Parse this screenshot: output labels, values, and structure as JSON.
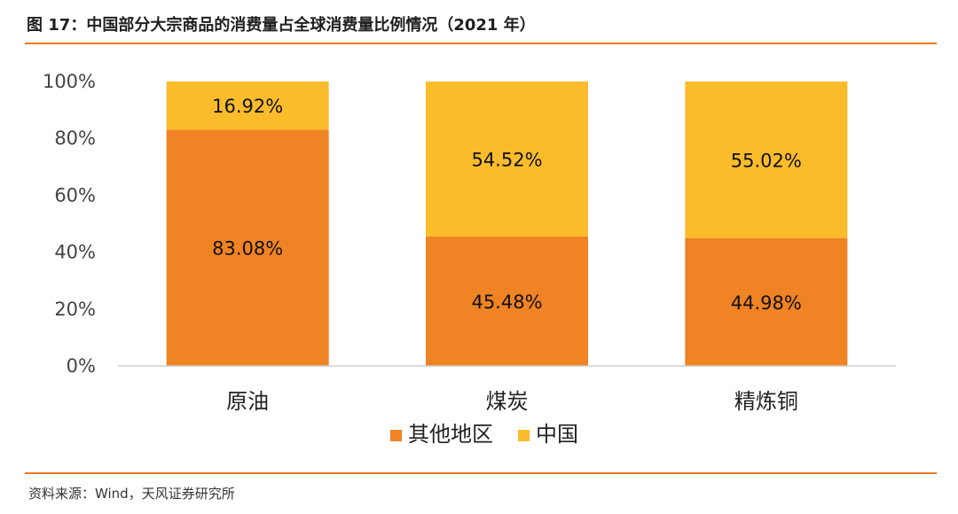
{
  "title": "图 17：中国部分大宗商品的消费量占全球消费量比例情况（2021 年）",
  "source": "资料来源：Wind，天风证券研究所",
  "chart_data": {
    "type": "bar",
    "stacked": true,
    "categories": [
      "原油",
      "煤炭",
      "精炼铜"
    ],
    "series": [
      {
        "name": "其他地区",
        "color": "#f08324",
        "values": [
          83.08,
          45.48,
          44.98
        ],
        "labels": [
          "83.08%",
          "45.48%",
          "44.98%"
        ]
      },
      {
        "name": "中国",
        "color": "#fbbc2c",
        "values": [
          16.92,
          54.52,
          55.02
        ],
        "labels": [
          "16.92%",
          "54.52%",
          "55.02%"
        ]
      }
    ],
    "ylim": [
      0,
      100
    ],
    "yticks": [
      "0%",
      "20%",
      "40%",
      "60%",
      "80%",
      "100%"
    ],
    "legend_position": "bottom",
    "grid": false
  }
}
